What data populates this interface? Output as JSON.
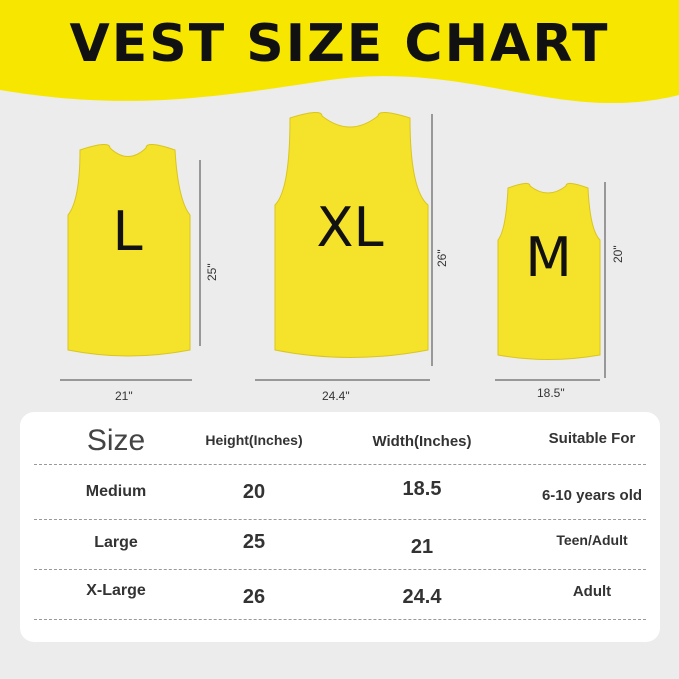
{
  "title": "VEST SIZE CHART",
  "colors": {
    "banner": "#f7e600",
    "vest": "#f5e22a",
    "background": "#ececec"
  },
  "vests": [
    {
      "letter": "L",
      "height": "25\"",
      "width": "21\""
    },
    {
      "letter": "XL",
      "height": "26\"",
      "width": "24.4\""
    },
    {
      "letter": "M",
      "height": "20\"",
      "width": "18.5\""
    }
  ],
  "table": {
    "headers": [
      "Size",
      "Height(Inches)",
      "Width(Inches)",
      "Suitable For"
    ],
    "rows": [
      [
        "Medium",
        "20",
        "18.5",
        "6-10 years old"
      ],
      [
        "Large",
        "25",
        "21",
        "Teen/Adult"
      ],
      [
        "X-Large",
        "26",
        "24.4",
        "Adult"
      ]
    ]
  }
}
